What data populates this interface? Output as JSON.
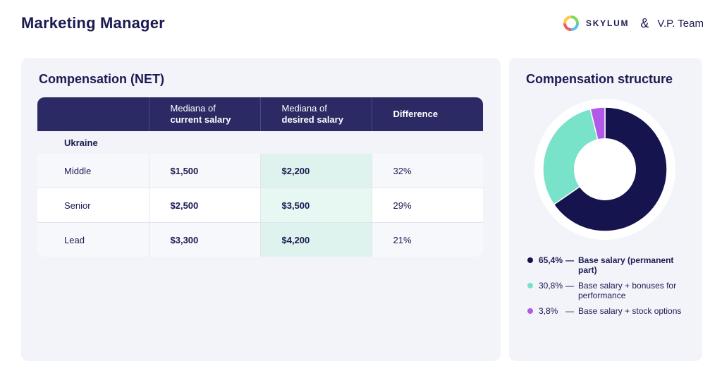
{
  "page_title": "Marketing Manager",
  "brand": {
    "skylum": "SKYLUM",
    "amp": "&",
    "vp": "V.P. Team"
  },
  "left_panel": {
    "title": "Compensation (NET)",
    "headers": {
      "col_current_line1": "Mediana of",
      "col_current_line2": "current salary",
      "col_desired_line1": "Mediana of",
      "col_desired_line2": "desired salary",
      "col_difference": "Difference"
    },
    "group": "Ukraine",
    "rows": [
      {
        "level": "Middle",
        "current": "$1,500",
        "desired": "$2,200",
        "difference": "32%"
      },
      {
        "level": "Senior",
        "current": "$2,500",
        "desired": "$3,500",
        "difference": "29%"
      },
      {
        "level": "Lead",
        "current": "$3,300",
        "desired": "$4,200",
        "difference": "21%"
      }
    ]
  },
  "right_panel": {
    "title": "Compensation structure",
    "legend": [
      {
        "pct": "65,4%",
        "dash": "—",
        "label": "Base salary (permanent part)",
        "color": "#16144f"
      },
      {
        "pct": "30,8%",
        "dash": "—",
        "label": "Base salary + bonuses for performance",
        "color": "#78e3c8"
      },
      {
        "pct": "3,8%",
        "dash": "—",
        "label": "Base salary + stock options",
        "color": "#b25ae8"
      }
    ]
  },
  "chart_data": [
    {
      "type": "table",
      "title": "Compensation (NET)",
      "columns": [
        "",
        "Mediana of current salary",
        "Mediana of desired salary",
        "Difference"
      ],
      "group": "Ukraine",
      "rows": [
        [
          "Middle",
          "$1,500",
          "$2,200",
          "32%"
        ],
        [
          "Senior",
          "$2,500",
          "$3,500",
          "29%"
        ],
        [
          "Lead",
          "$3,300",
          "$4,200",
          "21%"
        ]
      ]
    },
    {
      "type": "pie",
      "title": "Compensation structure",
      "slices": [
        {
          "label": "Base salary (permanent part)",
          "value": 65.4,
          "color": "#16144f"
        },
        {
          "label": "Base salary + bonuses for performance",
          "value": 30.8,
          "color": "#78e3c8"
        },
        {
          "label": "Base salary + stock options",
          "value": 3.8,
          "color": "#b25ae8"
        }
      ],
      "start": "top",
      "direction": "clockwise",
      "legend_position": "bottom"
    }
  ]
}
